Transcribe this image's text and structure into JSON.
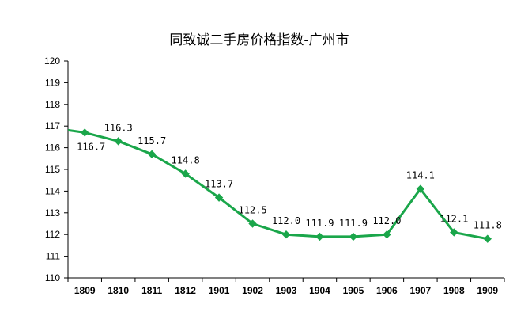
{
  "chart_data": {
    "type": "line",
    "title": "同致诚二手房价格指数-广州市",
    "xlabel": "",
    "ylabel": "",
    "categories": [
      "1809",
      "1810",
      "1811",
      "1812",
      "1901",
      "1902",
      "1903",
      "1904",
      "1905",
      "1906",
      "1907",
      "1908",
      "1909"
    ],
    "series": [
      {
        "values": [
          116.7,
          116.3,
          115.7,
          114.8,
          113.7,
          112.5,
          112.0,
          111.9,
          111.9,
          112.0,
          114.1,
          112.1,
          111.8
        ],
        "labels": [
          "116.7",
          "116.3",
          "115.7",
          "114.8",
          "113.7",
          "112.5",
          "112.0",
          "111.9",
          "111.9",
          "112.0",
          "114.1",
          "112.1",
          "111.8"
        ],
        "color": "#1aa64a"
      }
    ],
    "ylim": [
      110,
      120
    ],
    "yticks": [
      "110",
      "111",
      "112",
      "113",
      "114",
      "115",
      "116",
      "117",
      "118",
      "119",
      "120"
    ],
    "grid": false,
    "legend": "none"
  }
}
